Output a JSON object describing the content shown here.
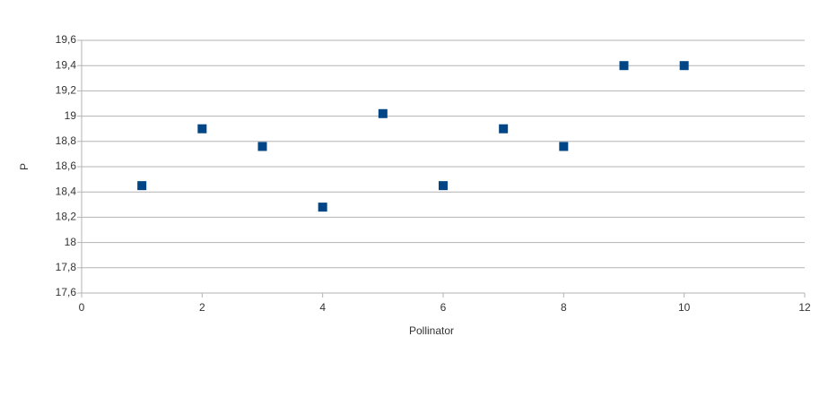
{
  "chart_data": {
    "type": "scatter",
    "x_label": "Pollinator",
    "y_label": "P",
    "series": [
      {
        "color": "#004586",
        "x": [
          1,
          2,
          3,
          4,
          5,
          6,
          7,
          8,
          9,
          10
        ],
        "values": [
          18.45,
          18.9,
          18.76,
          18.28,
          19.02,
          18.45,
          18.9,
          18.76,
          19.4,
          19.4
        ]
      }
    ],
    "xlim": [
      0,
      12
    ],
    "xticks": [
      0,
      2,
      4,
      6,
      8,
      10,
      12
    ],
    "ylim": [
      17.6,
      19.6
    ],
    "yticks": [
      {
        "value": 17.6,
        "label": "17,6"
      },
      {
        "value": 17.8,
        "label": "17,8"
      },
      18,
      {
        "value": 18.2,
        "label": "18,2"
      },
      {
        "value": 18.4,
        "label": "18,4"
      },
      {
        "value": 18.6,
        "label": "18,6"
      },
      {
        "value": 18.8,
        "label": "18,8"
      },
      19,
      {
        "value": 19.2,
        "label": "19,2"
      },
      {
        "value": 19.4,
        "label": "19,4"
      },
      {
        "value": 19.6,
        "label": "19,6"
      }
    ],
    "grid": true
  }
}
